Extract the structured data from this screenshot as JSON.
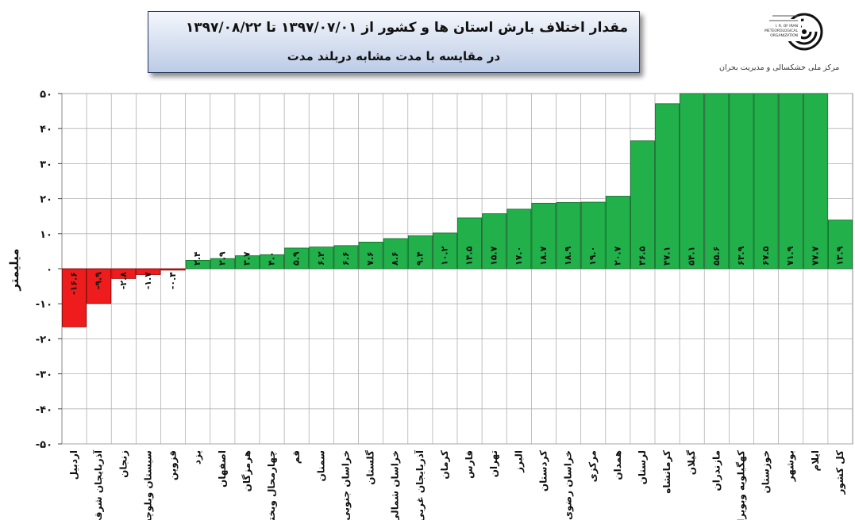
{
  "title_line1": "مقدار اختلاف بارش استان ها و کشور از  ۱۳۹۷/۰۷/۰۱ تا ۱۳۹۷/۰۸/۲۲",
  "title_line2": "در مقایسه با مدت مشابه دربلند مدت",
  "org_name": "مرکز ملی خشکسالی و مدیریت بحران",
  "logo_text": [
    "I. R. OF IRAN",
    "METEOROLOGICAL",
    "ORGANIZATION"
  ],
  "colors": {
    "positive": "#22b04a",
    "negative": "#ee1c1c",
    "grid": "#b0b0b0"
  },
  "chart_data": {
    "type": "bar",
    "ylabel": "میلیمتر",
    "ylim": [
      -50,
      50
    ],
    "yticks": [
      "-۵۰",
      "-۴۰",
      "-۳۰",
      "-۲۰",
      "-۱۰",
      "۰",
      "۱۰",
      "۲۰",
      "۳۰",
      "۴۰",
      "۵۰"
    ],
    "ytick_values": [
      -50,
      -40,
      -30,
      -20,
      -10,
      0,
      10,
      20,
      30,
      40,
      50
    ],
    "categories": [
      "اردبیل",
      "آذربایجان شرقی",
      "زنجان",
      "سیستان وبلوچستان",
      "قزوین",
      "یزد",
      "اصفهان",
      "هرمزگان",
      "چهارمحال وبختیاری",
      "قم",
      "سمنان",
      "خراسان جنوبی",
      "گلستان",
      "خراسان شمالی",
      "آذربایجان غربی",
      "کرمان",
      "فارس",
      "تهران",
      "البرز",
      "کردستان",
      "خراسان رضوی",
      "مرکزی",
      "همدان",
      "لرستان",
      "کرمانشاه",
      "گیلان",
      "مازندران",
      "کهگیلویه وبویراحمد",
      "خوزستان",
      "بوشهر",
      "ایلام",
      "کل کشور"
    ],
    "values": [
      -16.6,
      -9.9,
      -2.8,
      -1.7,
      -0.4,
      2.4,
      2.9,
      3.7,
      4.0,
      5.9,
      6.2,
      6.6,
      7.6,
      8.6,
      9.4,
      10.2,
      14.5,
      15.7,
      17.0,
      18.7,
      18.9,
      19.0,
      20.7,
      36.5,
      47.1,
      54.1,
      55.6,
      63.9,
      67.5,
      71.9,
      77.7,
      13.9
    ],
    "data_labels": [
      "-۱۶.۶",
      "-۹.۹",
      "-۲.۸",
      "-۱.۷",
      "-۰.۴",
      "۲.۴",
      "۲.۹",
      "۳.۷",
      "۴.۰",
      "۵.۹",
      "۶.۲",
      "۶.۶",
      "۷.۶",
      "۸.۶",
      "۹.۴",
      "۱۰.۲",
      "۱۴.۵",
      "۱۵.۷",
      "۱۷.۰",
      "۱۸.۷",
      "۱۸.۹",
      "۱۹.۰",
      "۲۰.۷",
      "۳۶.۵",
      "۴۷.۱",
      "۵۴.۱",
      "۵۵.۶",
      "۶۳.۹",
      "۶۷.۵",
      "۷۱.۹",
      "۷۷.۷",
      "۱۳.۹"
    ],
    "grid": true,
    "legend": "none"
  }
}
